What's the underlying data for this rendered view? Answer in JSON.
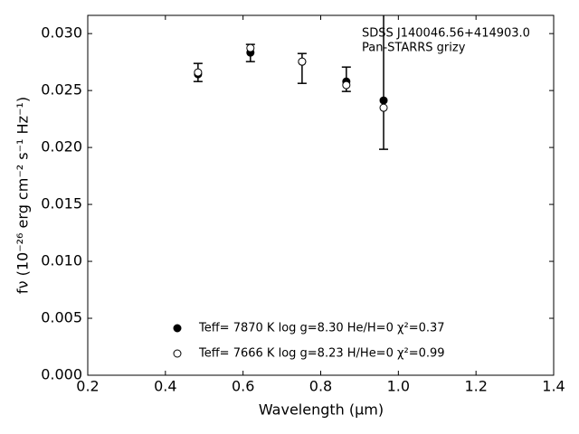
{
  "chart_data": {
    "type": "errorbar-scatter",
    "annotations": [
      "SDSS J140046.56+414903.0",
      "Pan-STARRS grizy"
    ],
    "x_label": "Wavelength (μm)",
    "y_label": "fν (10⁻²⁶ erg cm⁻² s⁻¹ Hz⁻¹)",
    "xlim": [
      0.2,
      1.4
    ],
    "xticks": [
      0.2,
      0.4,
      0.6,
      0.8,
      {
        "value": 1.0,
        "label": "1.0"
      },
      1.2,
      1.4
    ],
    "ylim": [
      0,
      0.0316
    ],
    "yticks": [
      {
        "value": 0,
        "label": "0.000"
      },
      {
        "value": 0.005,
        "label": "0.005"
      },
      {
        "value": 0.01,
        "label": "0.010"
      },
      {
        "value": 0.015,
        "label": "0.015"
      },
      {
        "value": 0.02,
        "label": "0.020"
      },
      {
        "value": 0.025,
        "label": "0.025"
      },
      {
        "value": 0.03,
        "label": "0.030"
      }
    ],
    "series": [
      {
        "name": "Teff=  7870 K  log g=8.30  He/H=0  χ²=0.37",
        "marker": "filled",
        "color": "#000000",
        "x": [
          0.484,
          0.619,
          0.752,
          0.866,
          0.962
        ],
        "values": [
          0.02643,
          0.02833,
          0.02754,
          0.02579,
          0.02413
        ],
        "yerr_high": [
          0.00095,
          0.00072,
          0.00071,
          0.00127,
          0.008
        ],
        "yerr_low": [
          0.00064,
          0.00079,
          0.00191,
          0.00087,
          0.00429
        ]
      },
      {
        "name": "Teff=  7666 K  log g=8.23  H/He=0  χ²=0.99",
        "marker": "open",
        "color": "#000000",
        "x": [
          0.484,
          0.619,
          0.752,
          0.866,
          0.962
        ],
        "values": [
          0.02659,
          0.02873,
          0.02754,
          0.02548,
          0.02349
        ]
      }
    ]
  }
}
